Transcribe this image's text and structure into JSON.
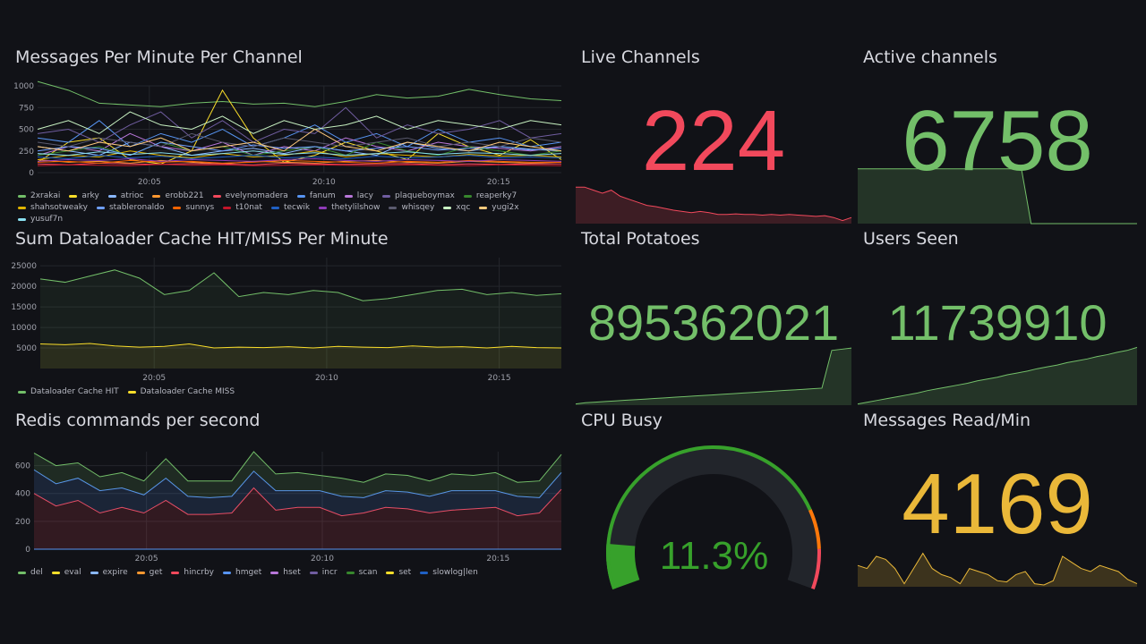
{
  "colors": {
    "green": "#73bf69",
    "red": "#f2495c",
    "yellow": "#eab839",
    "gauge_green": "#37a12b",
    "orange": "#ff780a"
  },
  "chart_data": [
    {
      "id": "msgs",
      "type": "line",
      "title": "Messages Per Minute Per Channel",
      "ylim": [
        0,
        1000
      ],
      "yticks": [
        0,
        250,
        500,
        750,
        1000
      ],
      "xlim": [
        1.8,
        16.8
      ],
      "xticks": [
        {
          "v": 5,
          "label": "20:05"
        },
        {
          "v": 10,
          "label": "20:10"
        },
        {
          "v": 15,
          "label": "20:15"
        }
      ],
      "series": [
        {
          "name": "2xrakai",
          "color": "#73bf69",
          "values": [
            1050,
            950,
            800,
            780,
            760,
            800,
            820,
            790,
            800,
            760,
            820,
            900,
            860,
            880,
            960,
            900,
            850,
            830
          ]
        },
        {
          "name": "arky",
          "color": "#fade2a",
          "values": [
            120,
            350,
            400,
            150,
            100,
            250,
            950,
            400,
            120,
            200,
            350,
            250,
            150,
            450,
            300,
            200,
            380,
            150
          ]
        },
        {
          "name": "atrioc",
          "color": "#8ab8ff",
          "values": [
            300,
            250,
            200,
            350,
            300,
            200,
            250,
            280,
            220,
            300,
            250,
            200,
            350,
            280,
            250,
            300,
            270,
            250
          ]
        },
        {
          "name": "erobb221",
          "color": "#ff9830",
          "values": [
            150,
            120,
            130,
            110,
            140,
            120,
            100,
            130,
            120,
            110,
            130,
            140,
            120,
            110,
            130,
            120,
            110,
            120
          ]
        },
        {
          "name": "evelynomadera",
          "color": "#f2495c",
          "values": [
            100,
            90,
            110,
            100,
            95,
            105,
            100,
            90,
            110,
            100,
            95,
            100,
            105,
            90,
            100,
            95,
            100,
            100
          ]
        },
        {
          "name": "fanum",
          "color": "#5794f2",
          "values": [
            400,
            350,
            600,
            300,
            450,
            350,
            500,
            300,
            400,
            550,
            350,
            450,
            300,
            500,
            350,
            400,
            300,
            350
          ]
        },
        {
          "name": "lacy",
          "color": "#b877d9",
          "values": [
            200,
            300,
            250,
            450,
            300,
            250,
            350,
            200,
            300,
            250,
            400,
            300,
            250,
            350,
            300,
            280,
            250,
            300
          ]
        },
        {
          "name": "plaqueboymax",
          "color": "#705da0",
          "values": [
            450,
            500,
            350,
            550,
            700,
            400,
            600,
            350,
            500,
            450,
            750,
            400,
            550,
            450,
            500,
            600,
            400,
            450
          ]
        },
        {
          "name": "reaperky7",
          "color": "#37872d",
          "values": [
            200,
            250,
            300,
            200,
            350,
            250,
            300,
            200,
            250,
            300,
            200,
            350,
            250,
            200,
            300,
            250,
            200,
            250
          ]
        },
        {
          "name": "shahsotweaky",
          "color": "#e0b400",
          "values": [
            150,
            200,
            180,
            250,
            200,
            170,
            220,
            180,
            200,
            250,
            180,
            220,
            200,
            180,
            210,
            190,
            200,
            180
          ]
        },
        {
          "name": "stableronaldo",
          "color": "#6e9fff",
          "values": [
            250,
            300,
            280,
            200,
            350,
            300,
            250,
            320,
            280,
            300,
            250,
            280,
            300,
            260,
            280,
            300,
            260,
            280
          ]
        },
        {
          "name": "sunnys",
          "color": "#fa6400",
          "values": [
            120,
            130,
            110,
            140,
            120,
            130,
            110,
            120,
            140,
            130,
            120,
            110,
            130,
            120,
            140,
            130,
            120,
            120
          ]
        },
        {
          "name": "t10nat",
          "color": "#c4162a",
          "values": [
            80,
            90,
            85,
            80,
            95,
            85,
            90,
            80,
            85,
            90,
            85,
            80,
            90,
            85,
            80,
            90,
            85,
            80
          ]
        },
        {
          "name": "tecwik",
          "color": "#1f60c4",
          "values": [
            180,
            160,
            200,
            170,
            190,
            160,
            180,
            200,
            170,
            180,
            160,
            190,
            170,
            180,
            200,
            170,
            180,
            170
          ]
        },
        {
          "name": "thetylilshow",
          "color": "#8f3bb8",
          "values": [
            130,
            150,
            140,
            160,
            130,
            150,
            140,
            130,
            150,
            160,
            140,
            130,
            150,
            140,
            130,
            150,
            140,
            130
          ]
        },
        {
          "name": "whisqey",
          "color": "#5a5a6e",
          "values": [
            350,
            300,
            400,
            350,
            300,
            450,
            350,
            300,
            400,
            350,
            300,
            350,
            400,
            300,
            350,
            300,
            400,
            350
          ]
        },
        {
          "name": "xqc",
          "color": "#c8f2c2",
          "values": [
            500,
            600,
            450,
            700,
            550,
            500,
            650,
            450,
            600,
            500,
            550,
            650,
            500,
            600,
            550,
            500,
            600,
            550
          ]
        },
        {
          "name": "yugi2x",
          "color": "#ffcb7d",
          "values": [
            300,
            250,
            350,
            300,
            400,
            250,
            300,
            350,
            250,
            500,
            300,
            250,
            350,
            300,
            250,
            350,
            300,
            250
          ]
        },
        {
          "name": "yusuf7n",
          "color": "#8ae0f0",
          "values": [
            220,
            200,
            240,
            210,
            230,
            200,
            220,
            250,
            210,
            230,
            200,
            220,
            240,
            210,
            230,
            220,
            200,
            220
          ]
        }
      ]
    },
    {
      "id": "cache",
      "type": "line",
      "title": "Sum Dataloader Cache HIT/MISS Per Minute",
      "ylim": [
        0,
        27000
      ],
      "yticks": [
        5000,
        10000,
        15000,
        20000,
        25000
      ],
      "xlim": [
        1.7,
        16.8
      ],
      "xticks": [
        {
          "v": 5,
          "label": "20:05"
        },
        {
          "v": 10,
          "label": "20:10"
        },
        {
          "v": 15,
          "label": "20:15"
        }
      ],
      "series": [
        {
          "name": "Dataloader Cache HIT",
          "color": "#73bf69",
          "values": [
            21800,
            21000,
            22500,
            24000,
            22000,
            18000,
            19000,
            23300,
            17500,
            18500,
            18000,
            19000,
            18500,
            16500,
            17000,
            18000,
            19000,
            19300,
            18000,
            18500,
            17800,
            18200
          ]
        },
        {
          "name": "Dataloader Cache MISS",
          "color": "#fade2a",
          "values": [
            6000,
            5800,
            6100,
            5500,
            5200,
            5400,
            6000,
            5000,
            5200,
            5100,
            5300,
            5000,
            5400,
            5200,
            5100,
            5500,
            5200,
            5300,
            5000,
            5400,
            5100,
            5000
          ]
        }
      ]
    },
    {
      "id": "redis",
      "type": "area-stacked",
      "title": "Redis commands per second",
      "ylim": [
        0,
        700
      ],
      "yticks": [
        0,
        200,
        400,
        600
      ],
      "xlim": [
        1.8,
        16.8
      ],
      "xticks": [
        {
          "v": 5,
          "label": "20:05"
        },
        {
          "v": 10,
          "label": "20:10"
        },
        {
          "v": 15,
          "label": "20:15"
        }
      ],
      "legend": [
        {
          "name": "del",
          "color": "#73bf69"
        },
        {
          "name": "eval",
          "color": "#fade2a"
        },
        {
          "name": "expire",
          "color": "#8ab8ff"
        },
        {
          "name": "get",
          "color": "#ff9830"
        },
        {
          "name": "hincrby",
          "color": "#f2495c"
        },
        {
          "name": "hmget",
          "color": "#5794f2"
        },
        {
          "name": "hset",
          "color": "#b877d9"
        },
        {
          "name": "incr",
          "color": "#705da0"
        },
        {
          "name": "scan",
          "color": "#37872d"
        },
        {
          "name": "set",
          "color": "#fade2a"
        },
        {
          "name": "slowlog|len",
          "color": "#1f60c4"
        }
      ],
      "series": [
        {
          "name": "hincrby",
          "color": "#f2495c",
          "values": [
            400,
            310,
            350,
            260,
            300,
            260,
            350,
            250,
            250,
            260,
            440,
            280,
            300,
            300,
            240,
            260,
            300,
            290,
            260,
            280,
            290,
            300,
            240,
            260,
            430
          ]
        },
        {
          "name": "hmget",
          "color": "#5794f2",
          "values": [
            170,
            160,
            160,
            160,
            140,
            130,
            160,
            130,
            120,
            120,
            120,
            140,
            120,
            120,
            140,
            110,
            120,
            120,
            120,
            140,
            130,
            120,
            140,
            110,
            120
          ]
        },
        {
          "name": "del",
          "color": "#73bf69",
          "values": [
            120,
            130,
            110,
            100,
            110,
            100,
            140,
            110,
            120,
            110,
            140,
            120,
            130,
            110,
            130,
            110,
            120,
            120,
            110,
            120,
            110,
            130,
            100,
            120,
            130
          ]
        }
      ]
    }
  ],
  "stats": [
    {
      "title": "Live Channels",
      "value": "224",
      "color": "#f2495c",
      "spark": [
        60,
        60,
        55,
        50,
        55,
        45,
        40,
        35,
        30,
        28,
        25,
        22,
        20,
        18,
        20,
        18,
        15,
        15,
        16,
        15,
        15,
        14,
        15,
        14,
        15,
        14,
        13,
        12,
        13,
        10,
        5,
        10
      ]
    },
    {
      "title": "Active channels",
      "value": "6758",
      "color": "#73bf69",
      "spark": [
        90,
        90,
        90,
        90,
        90,
        90,
        90,
        90,
        90,
        90,
        90,
        90,
        90,
        90,
        90,
        90,
        90,
        90,
        0,
        0,
        0,
        0,
        0,
        0,
        0,
        0,
        0,
        0,
        0,
        0
      ]
    },
    {
      "title": "Total Potatoes",
      "value": "895362021",
      "color": "#73bf69",
      "spark": [
        2,
        4,
        5,
        6,
        7,
        8,
        9,
        10,
        11,
        12,
        13,
        14,
        15,
        16,
        17,
        18,
        19,
        20,
        21,
        22,
        23,
        24,
        25,
        26,
        27,
        28,
        90,
        92,
        94
      ]
    },
    {
      "title": "Users Seen",
      "value": "11739910",
      "color": "#73bf69",
      "spark": [
        2,
        5,
        8,
        11,
        14,
        17,
        20,
        24,
        27,
        30,
        33,
        36,
        40,
        43,
        46,
        50,
        53,
        56,
        60,
        63,
        66,
        70,
        73,
        76,
        80,
        83,
        87,
        90,
        95
      ]
    },
    {
      "title": "Messages Read/Min",
      "value": "4169",
      "color": "#eab839",
      "spark": [
        35,
        30,
        50,
        45,
        30,
        5,
        30,
        55,
        30,
        20,
        15,
        5,
        30,
        25,
        20,
        10,
        8,
        20,
        25,
        5,
        3,
        10,
        50,
        40,
        30,
        25,
        35,
        30,
        25,
        12,
        5
      ]
    }
  ],
  "gauge": {
    "title": "CPU Busy",
    "value": "11.3%",
    "fraction": 0.113
  }
}
